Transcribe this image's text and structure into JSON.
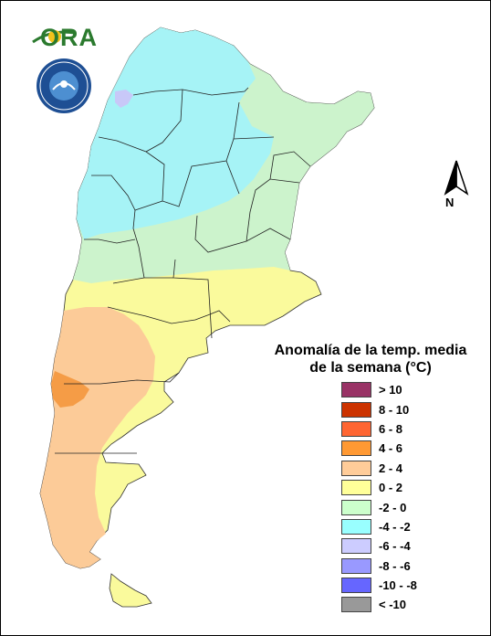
{
  "logo": {
    "text": "ORA"
  },
  "compass": {
    "label": "N"
  },
  "legend": {
    "title_line1": "Anomalía de la temp. media",
    "title_line2": "de la semana (°C)",
    "items": [
      {
        "label": "> 10",
        "color": "#993366"
      },
      {
        "label": "8 - 10",
        "color": "#cc3300"
      },
      {
        "label": "6 - 8",
        "color": "#ff6633"
      },
      {
        "label": "4 - 6",
        "color": "#ff9933"
      },
      {
        "label": "2 - 4",
        "color": "#ffcc99"
      },
      {
        "label": "0 - 2",
        "color": "#ffff99"
      },
      {
        "label": "-2 - 0",
        "color": "#ccffcc"
      },
      {
        "label": "-4 - -2",
        "color": "#99ffff"
      },
      {
        "label": "-6 - -4",
        "color": "#ccccff"
      },
      {
        "label": "-8 - -6",
        "color": "#9999ff"
      },
      {
        "label": "-10 - -8",
        "color": "#6666ff"
      },
      {
        "label": "< -10",
        "color": "#999999"
      }
    ]
  },
  "map": {
    "zones": [
      {
        "name": "north-cold-zone",
        "value_range": "-4 - -2",
        "color": "#a6f3f6"
      },
      {
        "name": "central-mild-zone",
        "value_range": "-2 - 0",
        "color": "#ccf3cc"
      },
      {
        "name": "pampa-warm-zone",
        "value_range": "0 - 2",
        "color": "#fafa9c"
      },
      {
        "name": "patagonia-warm-zone",
        "value_range": "2 - 4",
        "color": "#fccb98"
      },
      {
        "name": "andes-hot-spot",
        "value_range": "4 - 6",
        "color": "#f59c46"
      },
      {
        "name": "cold-spot",
        "value_range": "-6 - -4",
        "color": "#c8c8f8"
      }
    ]
  }
}
